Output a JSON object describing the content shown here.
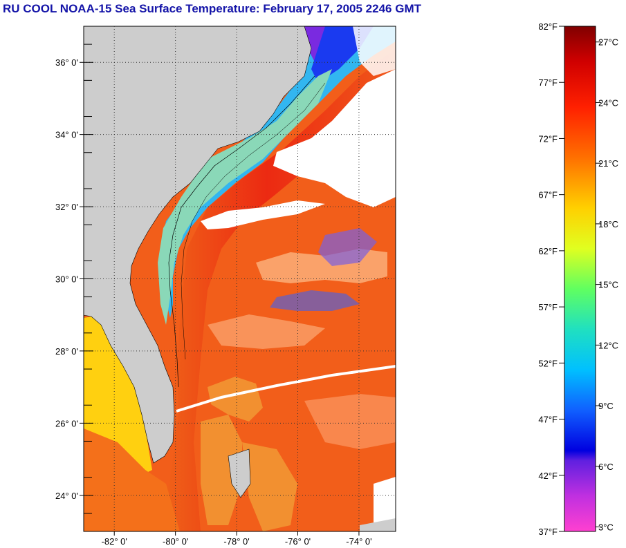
{
  "title": "RU COOL  NOAA-15  Sea Surface Temperature:  February 17, 2005 2246 GMT",
  "map": {
    "lon_range": [
      -83.0,
      -72.8
    ],
    "lat_range": [
      23.0,
      37.0
    ],
    "lat_ticks": [
      {
        "value": 36,
        "label": "36° 0'"
      },
      {
        "value": 34,
        "label": "34° 0'"
      },
      {
        "value": 32,
        "label": "32° 0'"
      },
      {
        "value": 30,
        "label": "30° 0'"
      },
      {
        "value": 28,
        "label": "28° 0'"
      },
      {
        "value": 26,
        "label": "26° 0'"
      },
      {
        "value": 24,
        "label": "24° 0'"
      }
    ],
    "lon_ticks": [
      {
        "value": -82,
        "label": "-82° 0'"
      },
      {
        "value": -80,
        "label": "-80° 0'"
      },
      {
        "value": -78,
        "label": "-78° 0'"
      },
      {
        "value": -76,
        "label": "-76° 0'"
      },
      {
        "value": -74,
        "label": "-74° 0'"
      }
    ],
    "colors": {
      "land": "#cdcdcd",
      "cloud": "#ffffff",
      "gulf_stream": "#ee2a12",
      "offshore": "#f4641a",
      "shelf": "#7ad6c8",
      "nearshore": "#2ab0ee"
    }
  },
  "colorbar": {
    "fahrenheit_range": [
      37,
      82
    ],
    "fahrenheit_labels": [
      "82°F",
      "77°F",
      "72°F",
      "67°F",
      "62°F",
      "57°F",
      "52°F",
      "47°F",
      "42°F",
      "37°F"
    ],
    "celsius_labels": [
      "27°C",
      "24°C",
      "21°C",
      "18°C",
      "15°C",
      "12°C",
      "9°C",
      "6°C",
      "3°C"
    ],
    "stops": [
      {
        "offset": 0.0,
        "color": "#800000"
      },
      {
        "offset": 0.07,
        "color": "#d00000"
      },
      {
        "offset": 0.16,
        "color": "#ff2000"
      },
      {
        "offset": 0.26,
        "color": "#ff7000"
      },
      {
        "offset": 0.36,
        "color": "#ffd000"
      },
      {
        "offset": 0.44,
        "color": "#e0ff20"
      },
      {
        "offset": 0.52,
        "color": "#60ff60"
      },
      {
        "offset": 0.6,
        "color": "#20e0c0"
      },
      {
        "offset": 0.68,
        "color": "#00c0ff"
      },
      {
        "offset": 0.76,
        "color": "#1060ff"
      },
      {
        "offset": 0.84,
        "color": "#0000e0"
      },
      {
        "offset": 0.86,
        "color": "#6020e0"
      },
      {
        "offset": 0.93,
        "color": "#c030e0"
      },
      {
        "offset": 1.0,
        "color": "#ff40d0"
      }
    ]
  }
}
